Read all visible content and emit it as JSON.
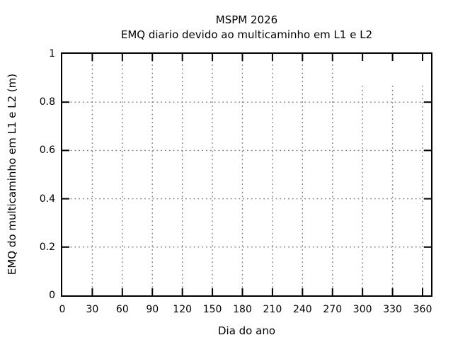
{
  "title": {
    "line1": "MSPM 2026",
    "line2": "EMQ diario devido ao multicaminho em L1 e L2"
  },
  "x_axis": {
    "label": "Dia do ano",
    "tick_labels": [
      "0",
      "30",
      "60",
      "90",
      "120",
      "150",
      "180",
      "210",
      "240",
      "270",
      "300",
      "330",
      "360"
    ]
  },
  "y_axis": {
    "label": "EMQ do multicaminho em L1 e L2 (m)",
    "tick_labels": [
      "0",
      "0.2",
      "0.4",
      "0.6",
      "0.8",
      "1"
    ]
  },
  "chart_data": {
    "type": "line",
    "title": "MSPM 2026",
    "subtitle": "EMQ diario devido ao multicaminho em L1 e L2",
    "xlabel": "Dia do ano",
    "ylabel": "EMQ do multicaminho em L1 e L2 (m)",
    "xlim": [
      0,
      370
    ],
    "ylim": [
      0,
      1
    ],
    "x_ticks": [
      0,
      30,
      60,
      90,
      120,
      150,
      180,
      210,
      240,
      270,
      300,
      330,
      360
    ],
    "y_ticks": [
      0,
      0.2,
      0.4,
      0.6,
      0.8,
      1
    ],
    "grid": "dotted",
    "legend": "none",
    "series": [],
    "gridline_render": {
      "full_top_value": 0.973,
      "partial_days": [
        300,
        330,
        360
      ],
      "partial_top_value": 0.868
    }
  },
  "colors": {
    "background": "#ffffff",
    "axis": "#000000",
    "grid": "#7c7c7c",
    "text": "#000000"
  }
}
